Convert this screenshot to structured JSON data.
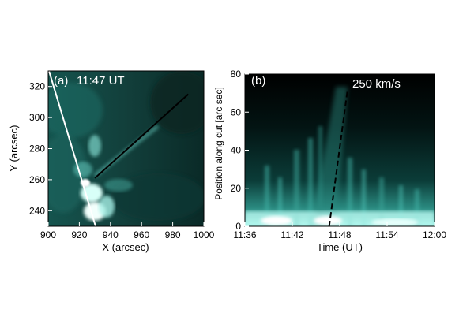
{
  "panels": [
    {
      "label": "(a)",
      "time": "11:47 UT",
      "xlabel": "X (arcsec)",
      "ylabel": "Y (arcsec)",
      "xlim": [
        900,
        1000
      ],
      "ylim": [
        230,
        330
      ],
      "xticks": [
        900,
        920,
        940,
        960,
        980,
        1000
      ],
      "yticks": [
        240,
        260,
        280,
        300,
        320
      ],
      "colormap": [
        "#000000",
        "#0b3a36",
        "#2f8f86",
        "#8fe6da",
        "#ffffff"
      ],
      "limb_line": {
        "color": "#ffffff"
      },
      "cut_line": {
        "color": "#000000",
        "x": [
          930,
          990
        ],
        "y": [
          261,
          315
        ]
      }
    },
    {
      "label": "(b)",
      "xlabel": "Time (UT)",
      "ylabel": "Position along cut [arc sec]",
      "xticks": [
        "11:36",
        "11:42",
        "11:48",
        "11:54",
        "12:00"
      ],
      "yticks": [
        0,
        20,
        40,
        60,
        80
      ],
      "ylim": [
        0,
        80
      ],
      "speed_annotation": "250 km/s",
      "fit_line": {
        "time": [
          "11:46:40",
          "11:49:00"
        ],
        "position": [
          0,
          72
        ]
      }
    }
  ],
  "chart_data": [
    {
      "type": "heatmap",
      "title": "",
      "xlabel": "X (arcsec)",
      "ylabel": "Y (arcsec)",
      "xlim": [
        900,
        1000
      ],
      "ylim": [
        230,
        330
      ]
    },
    {
      "type": "heatmap",
      "title": "",
      "xlabel": "Time (UT)",
      "ylabel": "Position along cut [arc sec]",
      "xlim": [
        "11:36",
        "12:00"
      ],
      "ylim": [
        0,
        80
      ]
    }
  ]
}
